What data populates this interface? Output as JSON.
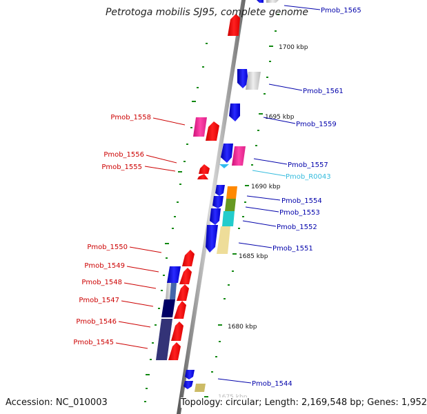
{
  "title": "Petrotoga mobilis SJ95, complete genome",
  "footer": {
    "accession": "Accession: NC_010003",
    "topology": "Topology: circular; Length: 2,169,548 bp; Genes: 1,952"
  },
  "colors": {
    "label_left": "#cc0000",
    "label_right": "#0000aa",
    "label_rna": "#33bbdd",
    "backbone": "#777777",
    "tick": "#118811"
  },
  "scale_marks": [
    "1700 kbp",
    "1695 kbp",
    "1690 kbp",
    "1685 kbp",
    "1680 kbp",
    "1675 kbp"
  ],
  "gene_labels_right": [
    "Pmob_1565",
    "Pmob_1561",
    "Pmob_1559",
    "Pmob_1557",
    "Pmob_R0043",
    "Pmob_1554",
    "Pmob_1553",
    "Pmob_1552",
    "Pmob_1551",
    "Pmob_1544"
  ],
  "gene_labels_left": [
    "Pmob_1558",
    "Pmob_1556",
    "Pmob_1555",
    "Pmob_1550",
    "Pmob_1549",
    "Pmob_1548",
    "Pmob_1547",
    "Pmob_1546",
    "Pmob_1545"
  ]
}
